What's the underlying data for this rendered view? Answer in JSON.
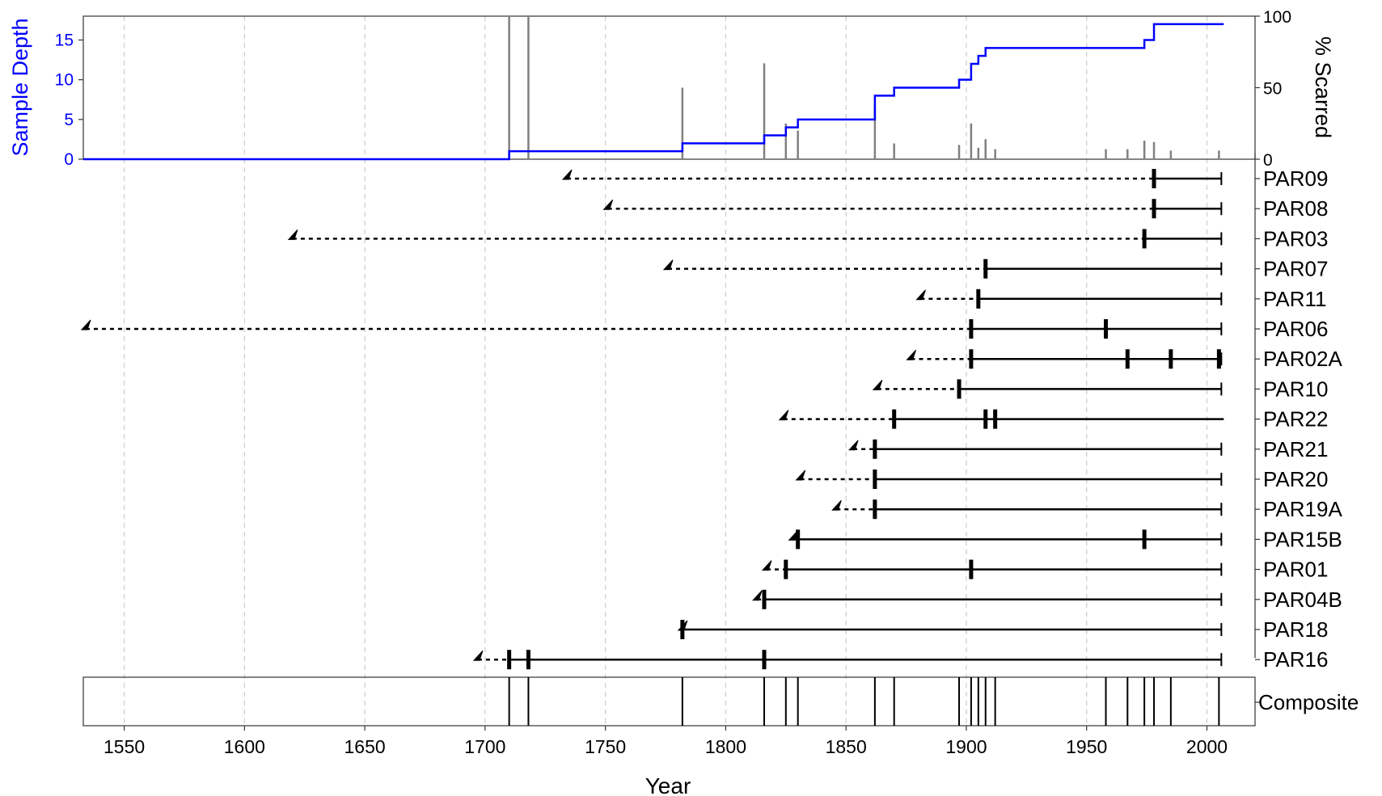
{
  "chart_data": {
    "type": "fire-history",
    "xlabel": "Year",
    "x_ticks": [
      1550,
      1600,
      1650,
      1700,
      1750,
      1800,
      1850,
      1900,
      1950,
      2000
    ],
    "xlim": [
      1533,
      2020
    ],
    "grid": "vertical dashed",
    "colors": {
      "sample_depth": "#0000ff",
      "scar_bars": "#808080",
      "series": "#000000",
      "grid": "#cccccc"
    },
    "top_panel": {
      "left_axis": {
        "label": "Sample Depth",
        "ticks": [
          0,
          5,
          10,
          15
        ],
        "range": [
          0,
          18
        ]
      },
      "right_axis": {
        "label": "% Scarred",
        "ticks": [
          0,
          50,
          100
        ],
        "range": [
          0,
          100
        ]
      },
      "sample_depth_steps": [
        [
          1533,
          0
        ],
        [
          1710,
          1
        ],
        [
          1782,
          2
        ],
        [
          1816,
          3
        ],
        [
          1825,
          4
        ],
        [
          1830,
          5
        ],
        [
          1862,
          8
        ],
        [
          1870,
          9
        ],
        [
          1897,
          10
        ],
        [
          1902,
          12
        ],
        [
          1905,
          13
        ],
        [
          1908,
          14
        ],
        [
          1974,
          15
        ],
        [
          1978,
          17
        ],
        [
          2007,
          17
        ]
      ],
      "percent_scarred": [
        {
          "year": 1710,
          "pct": 100
        },
        {
          "year": 1718,
          "pct": 100
        },
        {
          "year": 1782,
          "pct": 50
        },
        {
          "year": 1816,
          "pct": 67
        },
        {
          "year": 1825,
          "pct": 25
        },
        {
          "year": 1830,
          "pct": 20
        },
        {
          "year": 1862,
          "pct": 37
        },
        {
          "year": 1870,
          "pct": 11
        },
        {
          "year": 1897,
          "pct": 10
        },
        {
          "year": 1902,
          "pct": 25
        },
        {
          "year": 1905,
          "pct": 8
        },
        {
          "year": 1908,
          "pct": 14
        },
        {
          "year": 1912,
          "pct": 7
        },
        {
          "year": 1958,
          "pct": 7
        },
        {
          "year": 1967,
          "pct": 7
        },
        {
          "year": 1974,
          "pct": 13
        },
        {
          "year": 1978,
          "pct": 12
        },
        {
          "year": 1985,
          "pct": 6
        },
        {
          "year": 2005,
          "pct": 6
        }
      ]
    },
    "series": [
      {
        "name": "PAR09",
        "inner": 1734,
        "recording_start": 1978,
        "outer": 2006,
        "scars": [
          1978
        ],
        "bark": false
      },
      {
        "name": "PAR08",
        "inner": 1751,
        "recording_start": 1978,
        "outer": 2006,
        "scars": [
          1978
        ],
        "bark": false
      },
      {
        "name": "PAR03",
        "inner": 1620,
        "recording_start": 1974,
        "outer": 2006,
        "scars": [
          1974
        ],
        "bark": false
      },
      {
        "name": "PAR07",
        "inner": 1776,
        "recording_start": 1908,
        "outer": 2006,
        "scars": [
          1908
        ],
        "bark": false
      },
      {
        "name": "PAR11",
        "inner": 1881,
        "recording_start": 1905,
        "outer": 2006,
        "scars": [
          1905
        ],
        "bark": false
      },
      {
        "name": "PAR06",
        "inner": 1534,
        "recording_start": 1902,
        "outer": 2006,
        "scars": [
          1902,
          1958
        ],
        "bark": false
      },
      {
        "name": "PAR02A",
        "inner": 1877,
        "recording_start": 1902,
        "outer": 2006,
        "scars": [
          1902,
          1967,
          1985,
          2005
        ],
        "bark": false
      },
      {
        "name": "PAR10",
        "inner": 1863,
        "recording_start": 1897,
        "outer": 2006,
        "scars": [
          1897
        ],
        "bark": false
      },
      {
        "name": "PAR22",
        "inner": 1824,
        "recording_start": 1870,
        "outer": 2007,
        "scars": [
          1870,
          1908,
          1912
        ],
        "bark": true
      },
      {
        "name": "PAR21",
        "inner": 1853,
        "recording_start": 1862,
        "outer": 2006,
        "scars": [
          1862
        ],
        "bark": false
      },
      {
        "name": "PAR20",
        "inner": 1831,
        "recording_start": 1862,
        "outer": 2006,
        "scars": [
          1862
        ],
        "bark": false
      },
      {
        "name": "PAR19A",
        "inner": 1846,
        "recording_start": 1862,
        "outer": 2006,
        "scars": [
          1862
        ],
        "bark": false
      },
      {
        "name": "PAR15B",
        "inner": 1828,
        "recording_start": 1830,
        "outer": 2006,
        "scars": [
          1830,
          1974
        ],
        "bark": false
      },
      {
        "name": "PAR01",
        "inner": 1817,
        "recording_start": 1825,
        "outer": 2006,
        "scars": [
          1825,
          1902
        ],
        "bark": false
      },
      {
        "name": "PAR04B",
        "inner": 1813,
        "recording_start": 1816,
        "outer": 2006,
        "scars": [
          1816
        ],
        "bark": false
      },
      {
        "name": "PAR18",
        "inner": 1782,
        "recording_start": 1782,
        "outer": 2006,
        "scars": [
          1782
        ],
        "bark": false
      },
      {
        "name": "PAR16",
        "inner": 1697,
        "recording_start": 1710,
        "outer": 2006,
        "scars": [
          1710,
          1718,
          1816
        ],
        "bark": false
      }
    ],
    "composite": {
      "label": "Composite",
      "years": [
        1710,
        1718,
        1782,
        1816,
        1825,
        1830,
        1862,
        1870,
        1897,
        1902,
        1905,
        1908,
        1912,
        1958,
        1967,
        1974,
        1978,
        1985,
        2005
      ]
    }
  }
}
